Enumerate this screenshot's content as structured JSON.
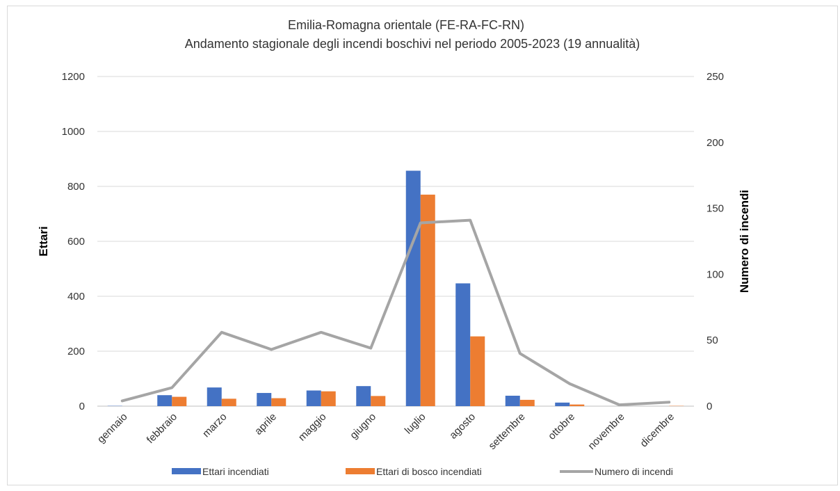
{
  "chart_data": {
    "type": "bar",
    "title": "Emilia-Romagna orientale (FE-RA-FC-RN)",
    "subtitle": "Andamento stagionale degli incendi boschivi nel periodo 2005-2023 (19 annualità)",
    "categories": [
      "gennaio",
      "febbraio",
      "marzo",
      "aprile",
      "maggio",
      "giugno",
      "luglio",
      "agosto",
      "settembre",
      "ottobre",
      "novembre",
      "dicembre"
    ],
    "ylabel": "Ettari",
    "y2label": "Numero di incendi",
    "ylim": [
      0,
      1200
    ],
    "y2lim": [
      0,
      250
    ],
    "yticks": [
      0,
      200,
      400,
      600,
      800,
      1000,
      1200
    ],
    "y2ticks": [
      0,
      50,
      100,
      150,
      200,
      250
    ],
    "grid": true,
    "legend_position": "bottom",
    "series": [
      {
        "name": "Ettari incendiati",
        "type": "bar",
        "axis": "left",
        "color": "#4472C4",
        "values": [
          1,
          40,
          68,
          48,
          57,
          73,
          857,
          447,
          38,
          13,
          0,
          0
        ]
      },
      {
        "name": "Ettari di bosco incendiati",
        "type": "bar",
        "axis": "left",
        "color": "#ED7D31",
        "values": [
          0,
          34,
          27,
          29,
          54,
          37,
          770,
          254,
          23,
          6,
          0,
          1
        ]
      },
      {
        "name": "Numero di incendi",
        "type": "line",
        "axis": "right",
        "color": "#A5A5A5",
        "values": [
          4,
          14,
          56,
          43,
          56,
          44,
          139,
          141,
          40,
          17,
          1,
          3
        ]
      }
    ]
  }
}
